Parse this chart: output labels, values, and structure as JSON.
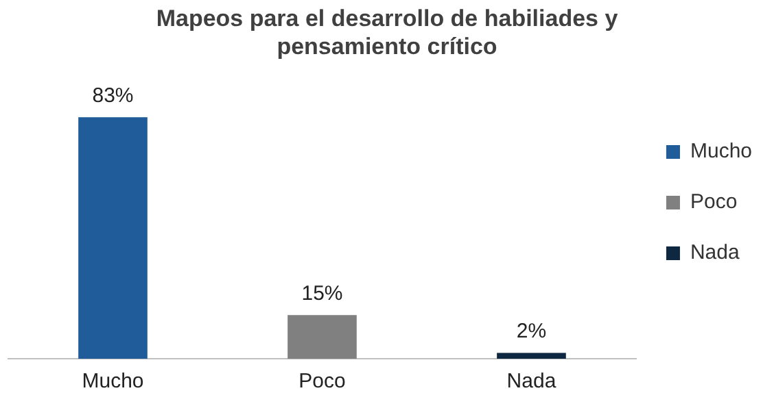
{
  "chart_data": {
    "type": "bar",
    "title": "Mapeos para el desarrollo de habiliades y pensamiento crítico",
    "categories": [
      "Mucho",
      "Poco",
      "Nada"
    ],
    "series": [
      {
        "name": "Mucho",
        "color": "#1f5c99",
        "values": [
          83,
          null,
          null
        ],
        "value_labels": [
          "83%",
          null,
          null
        ]
      },
      {
        "name": "Poco",
        "color": "#808080",
        "values": [
          null,
          15,
          null
        ],
        "value_labels": [
          null,
          "15%",
          null
        ]
      },
      {
        "name": "Nada",
        "color": "#0e2841",
        "values": [
          null,
          null,
          2
        ],
        "value_labels": [
          null,
          null,
          "2%"
        ]
      }
    ],
    "legend": "right",
    "grid": false
  }
}
